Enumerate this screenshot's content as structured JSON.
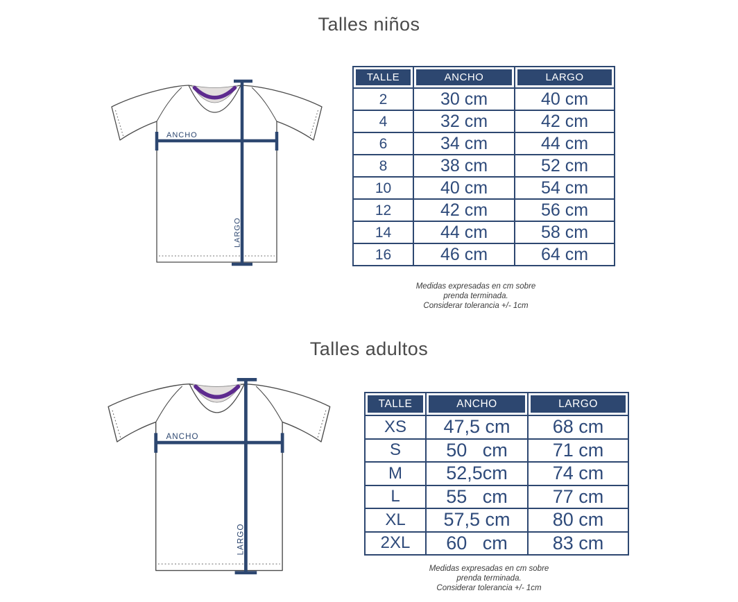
{
  "colors": {
    "navy": "#2d4770",
    "table_text": "#2e4a7a",
    "title_gray": "#4a4a4a",
    "purple": "#5e2b8f",
    "collar_inside": "#e3dfde",
    "outline": "#4b4b4b",
    "footnote_gray": "#3a3a3a"
  },
  "sections": [
    {
      "title": "Talles niños",
      "diagram": {
        "width_label": "ANCHO",
        "length_label": "LARGO"
      },
      "table": {
        "headers": [
          "TALLE",
          "ANCHO",
          "LARGO"
        ],
        "rows": [
          [
            "2",
            "30 cm",
            "40 cm"
          ],
          [
            "4",
            "32 cm",
            "42 cm"
          ],
          [
            "6",
            "34 cm",
            "44 cm"
          ],
          [
            "8",
            "38 cm",
            "52 cm"
          ],
          [
            "10",
            "40 cm",
            "54 cm"
          ],
          [
            "12",
            "42 cm",
            "56 cm"
          ],
          [
            "14",
            "44 cm",
            "58 cm"
          ],
          [
            "16",
            "46 cm",
            "64 cm"
          ]
        ]
      },
      "footnote_lines": [
        "Medidas expresadas en cm sobre",
        "prenda terminada.",
        "Considerar tolerancia +/- 1cm"
      ]
    },
    {
      "title": "Talles adultos",
      "diagram": {
        "width_label": "ANCHO",
        "length_label": "LARGO"
      },
      "table": {
        "headers": [
          "TALLE",
          "ANCHO",
          "LARGO"
        ],
        "rows": [
          [
            "XS",
            "47,5 cm",
            "68 cm"
          ],
          [
            "S",
            "50   cm",
            "71 cm"
          ],
          [
            "M",
            "52,5cm",
            "74 cm"
          ],
          [
            "L",
            "55   cm",
            "77 cm"
          ],
          [
            "XL",
            "57,5 cm",
            "80 cm"
          ],
          [
            "2XL",
            "60   cm",
            "83 cm"
          ]
        ]
      },
      "footnote_lines": [
        "Medidas expresadas en cm sobre",
        "prenda terminada.",
        "Considerar tolerancia +/- 1cm"
      ]
    }
  ]
}
